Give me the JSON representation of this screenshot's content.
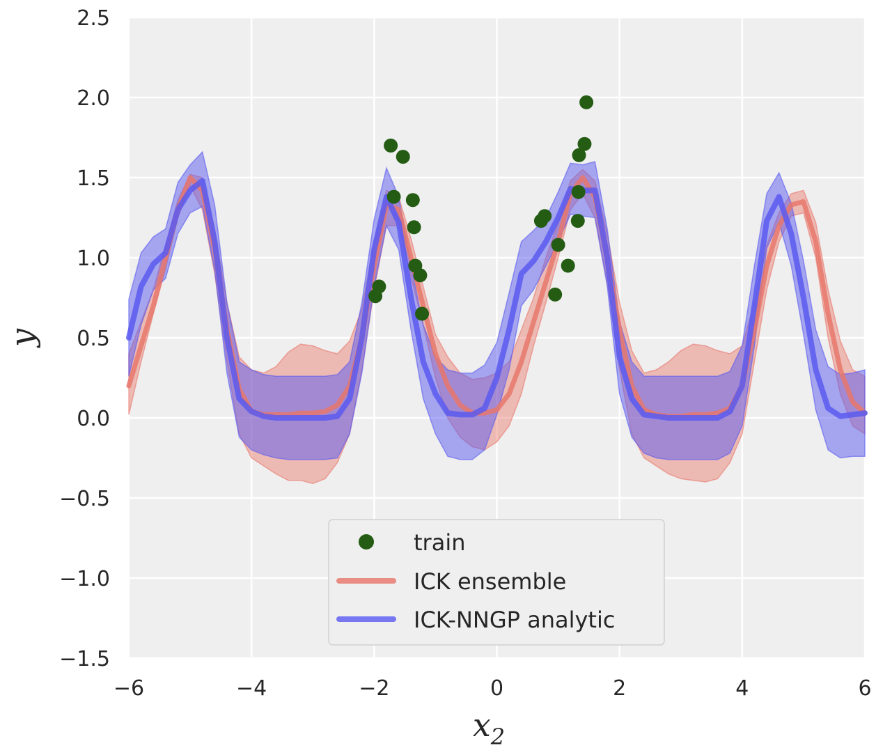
{
  "chart_data": {
    "type": "line",
    "xlabel": "x",
    "xlabel_sub": "2",
    "ylabel": "y",
    "xlim": [
      -6,
      6
    ],
    "ylim": [
      -1.5,
      2.5
    ],
    "xticks": [
      -6,
      -4,
      -2,
      0,
      2,
      4,
      6
    ],
    "xtick_labels": [
      "−6",
      "−4",
      "−2",
      "0",
      "2",
      "4",
      "6"
    ],
    "yticks": [
      -1.5,
      -1.0,
      -0.5,
      0.0,
      0.5,
      1.0,
      1.5,
      2.0,
      2.5
    ],
    "ytick_labels": [
      "−1.5",
      "−1.0",
      "−0.5",
      "0.0",
      "0.5",
      "1.0",
      "1.5",
      "2.0",
      "2.5"
    ],
    "grid": true,
    "legend_position": "lower-center",
    "series": [
      {
        "name": "ICK ensemble",
        "color": "#e8776b",
        "x": [
          -6.0,
          -5.8,
          -5.6,
          -5.4,
          -5.2,
          -5.0,
          -4.8,
          -4.6,
          -4.4,
          -4.2,
          -4.0,
          -3.8,
          -3.6,
          -3.4,
          -3.2,
          -3.0,
          -2.8,
          -2.6,
          -2.4,
          -2.2,
          -2.0,
          -1.8,
          -1.6,
          -1.4,
          -1.2,
          -1.0,
          -0.8,
          -0.6,
          -0.4,
          -0.2,
          0.0,
          0.2,
          0.4,
          0.6,
          0.8,
          1.0,
          1.2,
          1.4,
          1.6,
          1.8,
          2.0,
          2.2,
          2.4,
          2.6,
          2.8,
          3.0,
          3.2,
          3.4,
          3.6,
          3.8,
          4.0,
          4.2,
          4.4,
          4.6,
          4.8,
          5.0,
          5.2,
          5.4,
          5.6,
          5.8,
          6.0
        ],
        "mean": [
          0.2,
          0.45,
          0.7,
          1.0,
          1.3,
          1.5,
          1.42,
          1.05,
          0.55,
          0.18,
          0.04,
          0.02,
          0.02,
          0.02,
          0.03,
          0.03,
          0.04,
          0.08,
          0.2,
          0.5,
          0.95,
          1.33,
          1.3,
          1.0,
          0.7,
          0.4,
          0.2,
          0.08,
          0.03,
          0.03,
          0.05,
          0.15,
          0.35,
          0.6,
          0.85,
          1.1,
          1.4,
          1.5,
          1.38,
          1.0,
          0.55,
          0.2,
          0.05,
          0.02,
          0.01,
          0.01,
          0.02,
          0.02,
          0.03,
          0.06,
          0.2,
          0.55,
          0.95,
          1.2,
          1.33,
          1.35,
          1.1,
          0.65,
          0.3,
          0.1,
          0.03
        ],
        "lower": [
          0.02,
          0.35,
          0.65,
          0.93,
          1.25,
          1.45,
          1.3,
          0.9,
          0.35,
          -0.1,
          -0.25,
          -0.3,
          -0.35,
          -0.39,
          -0.39,
          -0.41,
          -0.38,
          -0.28,
          -0.1,
          0.3,
          0.8,
          1.2,
          1.2,
          0.88,
          0.58,
          0.25,
          0.0,
          -0.12,
          -0.18,
          -0.2,
          -0.15,
          -0.05,
          0.15,
          0.45,
          0.72,
          1.0,
          1.3,
          1.4,
          1.25,
          0.85,
          0.3,
          -0.1,
          -0.25,
          -0.3,
          -0.35,
          -0.38,
          -0.39,
          -0.4,
          -0.38,
          -0.28,
          -0.1,
          0.35,
          0.8,
          1.1,
          1.26,
          1.28,
          1.0,
          0.5,
          0.15,
          -0.05,
          -0.1
        ],
        "upper": [
          0.4,
          0.6,
          0.8,
          1.08,
          1.36,
          1.52,
          1.5,
          1.18,
          0.72,
          0.38,
          0.3,
          0.28,
          0.32,
          0.41,
          0.46,
          0.45,
          0.42,
          0.4,
          0.48,
          0.68,
          1.1,
          1.42,
          1.38,
          1.12,
          0.82,
          0.52,
          0.38,
          0.28,
          0.24,
          0.25,
          0.28,
          0.35,
          0.55,
          0.75,
          1.0,
          1.22,
          1.48,
          1.55,
          1.48,
          1.15,
          0.72,
          0.42,
          0.28,
          0.3,
          0.35,
          0.42,
          0.46,
          0.45,
          0.42,
          0.4,
          0.45,
          0.72,
          1.08,
          1.28,
          1.4,
          1.42,
          1.22,
          0.8,
          0.48,
          0.3,
          0.26
        ]
      },
      {
        "name": "ICK-NNGP analytic",
        "color": "#5a5af0",
        "x": [
          -6.0,
          -5.8,
          -5.6,
          -5.4,
          -5.2,
          -5.0,
          -4.8,
          -4.6,
          -4.4,
          -4.2,
          -4.0,
          -3.8,
          -3.6,
          -3.4,
          -3.2,
          -3.0,
          -2.8,
          -2.6,
          -2.4,
          -2.2,
          -2.0,
          -1.8,
          -1.6,
          -1.4,
          -1.2,
          -1.0,
          -0.8,
          -0.6,
          -0.4,
          -0.2,
          0.0,
          0.2,
          0.4,
          0.6,
          0.8,
          1.0,
          1.2,
          1.4,
          1.6,
          1.8,
          2.0,
          2.2,
          2.4,
          2.6,
          2.8,
          3.0,
          3.2,
          3.4,
          3.6,
          3.8,
          4.0,
          4.2,
          4.4,
          4.6,
          4.8,
          5.0,
          5.2,
          5.4,
          5.6,
          5.8,
          6.0
        ],
        "mean": [
          0.5,
          0.82,
          0.96,
          1.03,
          1.3,
          1.42,
          1.48,
          1.1,
          0.5,
          0.12,
          0.04,
          0.01,
          0.0,
          0.0,
          0.0,
          0.0,
          0.0,
          0.01,
          0.12,
          0.5,
          1.05,
          1.38,
          1.22,
          0.75,
          0.35,
          0.15,
          0.03,
          0.02,
          0.02,
          0.06,
          0.25,
          0.55,
          0.9,
          0.98,
          1.1,
          1.25,
          1.43,
          1.42,
          1.42,
          1.0,
          0.38,
          0.12,
          0.02,
          0.01,
          0.0,
          0.0,
          0.0,
          0.0,
          0.0,
          0.04,
          0.2,
          0.7,
          1.23,
          1.38,
          1.15,
          0.75,
          0.3,
          0.06,
          0.01,
          0.02,
          0.03
        ],
        "lower": [
          0.26,
          0.58,
          0.8,
          0.87,
          1.15,
          1.28,
          1.32,
          0.92,
          0.28,
          -0.12,
          -0.2,
          -0.23,
          -0.25,
          -0.26,
          -0.26,
          -0.26,
          -0.26,
          -0.25,
          -0.1,
          0.28,
          0.82,
          1.2,
          1.05,
          0.55,
          0.12,
          -0.1,
          -0.24,
          -0.26,
          -0.26,
          -0.2,
          0.02,
          0.3,
          0.7,
          0.8,
          0.95,
          1.1,
          1.27,
          1.26,
          1.25,
          0.82,
          0.15,
          -0.12,
          -0.22,
          -0.25,
          -0.26,
          -0.26,
          -0.26,
          -0.26,
          -0.26,
          -0.22,
          -0.05,
          0.45,
          1.06,
          1.22,
          0.95,
          0.52,
          0.05,
          -0.2,
          -0.25,
          -0.24,
          -0.24
        ],
        "upper": [
          0.74,
          1.03,
          1.13,
          1.18,
          1.47,
          1.58,
          1.66,
          1.33,
          0.72,
          0.35,
          0.3,
          0.27,
          0.26,
          0.26,
          0.26,
          0.26,
          0.26,
          0.27,
          0.35,
          0.72,
          1.24,
          1.56,
          1.38,
          0.95,
          0.58,
          0.38,
          0.3,
          0.28,
          0.28,
          0.33,
          0.47,
          0.78,
          1.1,
          1.17,
          1.25,
          1.41,
          1.59,
          1.58,
          1.6,
          1.18,
          0.6,
          0.35,
          0.26,
          0.26,
          0.26,
          0.26,
          0.26,
          0.26,
          0.26,
          0.29,
          0.45,
          0.95,
          1.4,
          1.53,
          1.34,
          0.98,
          0.55,
          0.32,
          0.27,
          0.28,
          0.3
        ]
      }
    ],
    "scatter": {
      "name": "train",
      "color": "#245c14",
      "x": [
        -1.98,
        -1.92,
        -1.73,
        -1.68,
        -1.53,
        -1.37,
        -1.35,
        -1.33,
        -1.25,
        -1.22,
        0.72,
        0.78,
        0.95,
        1.0,
        1.16,
        1.32,
        1.33,
        1.34,
        1.43,
        1.46
      ],
      "y": [
        0.76,
        0.82,
        1.7,
        1.38,
        1.63,
        1.36,
        1.19,
        0.95,
        0.89,
        0.65,
        1.23,
        1.26,
        0.77,
        1.08,
        0.95,
        1.23,
        1.41,
        1.64,
        1.71,
        1.97
      ]
    },
    "legend": [
      {
        "label": "train",
        "kind": "marker",
        "color": "#245c14"
      },
      {
        "label": "ICK ensemble",
        "kind": "line",
        "color": "#e88c84"
      },
      {
        "label": "ICK-NNGP analytic",
        "kind": "line",
        "color": "#7777f2"
      }
    ]
  }
}
